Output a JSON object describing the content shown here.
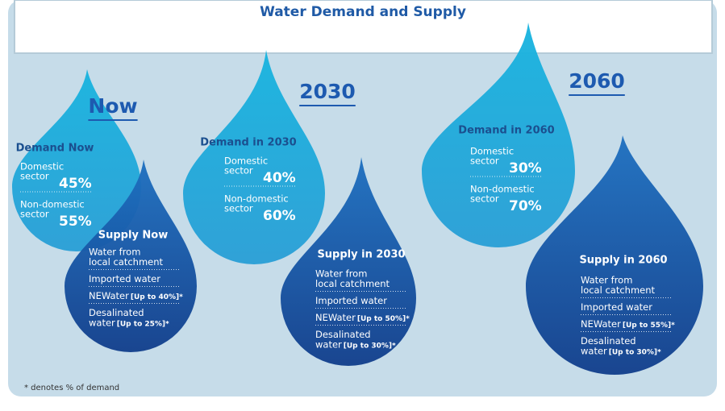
{
  "title": "Water Demand and Supply",
  "panels": [
    {
      "heading": "Now",
      "demand": {
        "title": "Demand Now",
        "items": [
          {
            "label": [
              "Domestic",
              "sector"
            ],
            "value": "45%"
          },
          {
            "label": [
              "Non-domestic",
              "sector"
            ],
            "value": "55%"
          }
        ]
      },
      "supply": {
        "title": "Supply Now",
        "items": [
          {
            "lines": [
              "Water from",
              "local catchment"
            ]
          },
          {
            "lines": [
              "Imported water"
            ]
          },
          {
            "lines": [
              "NEWater"
            ],
            "note": "[Up to 40%]*"
          },
          {
            "lines": [
              "Desalinated",
              "water"
            ],
            "note": "[Up to 25%]*"
          }
        ]
      }
    },
    {
      "heading": "2030",
      "demand": {
        "title": "Demand in 2030",
        "items": [
          {
            "label": [
              "Domestic",
              "sector"
            ],
            "value": "40%"
          },
          {
            "label": [
              "Non-domestic",
              "sector"
            ],
            "value": "60%"
          }
        ]
      },
      "supply": {
        "title": "Supply in 2030",
        "items": [
          {
            "lines": [
              "Water from",
              "local catchment"
            ]
          },
          {
            "lines": [
              "Imported water"
            ]
          },
          {
            "lines": [
              "NEWater"
            ],
            "note": "[Up to 50%]*"
          },
          {
            "lines": [
              "Desalinated",
              "water"
            ],
            "note": "[Up to 30%]*"
          }
        ]
      }
    },
    {
      "heading": "2060",
      "demand": {
        "title": "Demand in 2060",
        "items": [
          {
            "label": [
              "Domestic",
              "sector"
            ],
            "value": "30%"
          },
          {
            "label": [
              "Non-domestic",
              "sector"
            ],
            "value": "70%"
          }
        ]
      },
      "supply": {
        "title": "Supply in 2060",
        "items": [
          {
            "lines": [
              "Water from",
              "local catchment"
            ]
          },
          {
            "lines": [
              "Imported water"
            ]
          },
          {
            "lines": [
              "NEWater"
            ],
            "note": "[Up to 55%]*"
          },
          {
            "lines": [
              "Desalinated",
              "water"
            ],
            "note": "[Up to 30%]*"
          }
        ]
      }
    }
  ],
  "footnote": "* denotes % of demand"
}
